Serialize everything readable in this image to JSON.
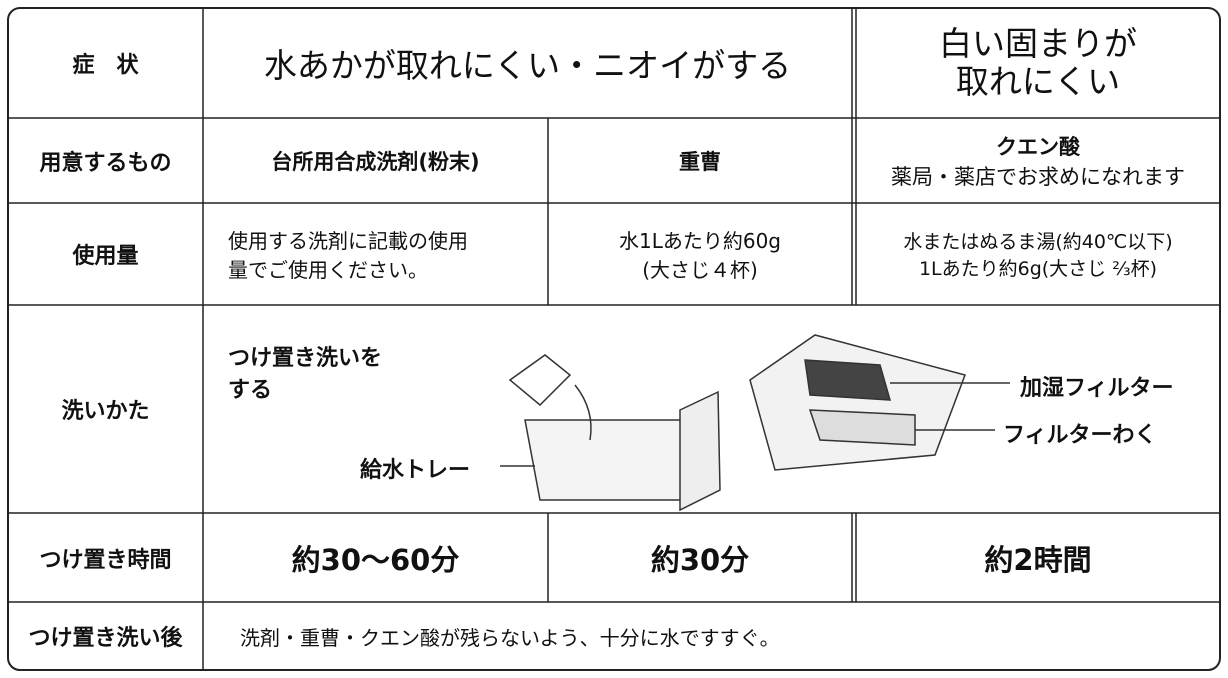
{
  "symptom": {
    "label": "症　状",
    "common": "水あかが取れにくい・ニオイがする",
    "citric": [
      "白い固まりが",
      "取れにくい"
    ]
  },
  "prepare": {
    "label": "用意するもの",
    "items": [
      "台所用合成洗剤(粉末)",
      "重曹",
      "クエン酸"
    ],
    "note": "薬局・薬店でお求めになれます"
  },
  "amount": {
    "label": "使用量",
    "values": [
      [
        "使用する洗剤に記載の使用",
        "量でご使用ください。"
      ],
      [
        "水1Lあたり約60g",
        "(大さじ４杯)"
      ],
      [
        "水またはぬるま湯(約40℃以下)",
        "1Lあたり約6g(大さじ ⅔杯)"
      ]
    ]
  },
  "method": {
    "label": "洗いかた",
    "instruction": [
      "つけ置き洗いを",
      "する"
    ],
    "parts": [
      "給水トレー",
      "加湿フィルター",
      "フィルターわく"
    ]
  },
  "soak_time": {
    "label": "つけ置き時間",
    "values": [
      "約30〜60分",
      "約30分",
      "約2時間"
    ]
  },
  "after": {
    "label": "つけ置き洗い後",
    "text": "洗剤・重曹・クエン酸が残らないよう、十分に水ですすぐ。"
  }
}
